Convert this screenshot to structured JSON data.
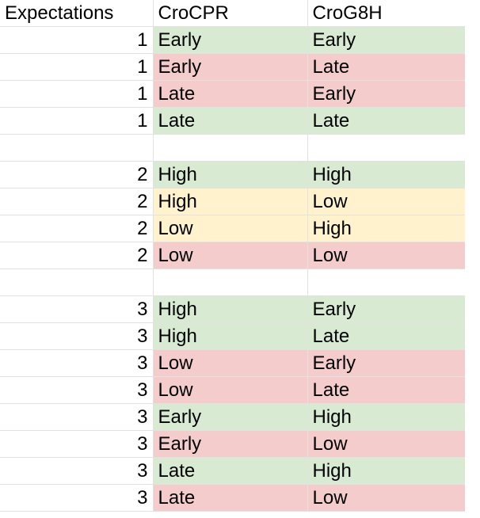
{
  "header": {
    "col_a": "Expectations",
    "col_b": "CroCPR",
    "col_c": "CroG8H"
  },
  "colors": {
    "green": "#d9ead3",
    "red": "#f4cccc",
    "yellow": "#fff2cc",
    "white": "#ffffff"
  },
  "rows": [
    {
      "exp": "1",
      "cpr": "Early",
      "g8h": "Early",
      "color": "green"
    },
    {
      "exp": "1",
      "cpr": "Early",
      "g8h": "Late",
      "color": "red"
    },
    {
      "exp": "1",
      "cpr": "Late",
      "g8h": "Early",
      "color": "red"
    },
    {
      "exp": "1",
      "cpr": "Late",
      "g8h": "Late",
      "color": "green"
    },
    {
      "exp": "",
      "cpr": "",
      "g8h": "",
      "color": "white"
    },
    {
      "exp": "2",
      "cpr": "High",
      "g8h": "High",
      "color": "green"
    },
    {
      "exp": "2",
      "cpr": "High",
      "g8h": "Low",
      "color": "yellow"
    },
    {
      "exp": "2",
      "cpr": "Low",
      "g8h": "High",
      "color": "yellow"
    },
    {
      "exp": "2",
      "cpr": "Low",
      "g8h": "Low",
      "color": "red"
    },
    {
      "exp": "",
      "cpr": "",
      "g8h": "",
      "color": "white"
    },
    {
      "exp": "3",
      "cpr": "High",
      "g8h": "Early",
      "color": "green"
    },
    {
      "exp": "3",
      "cpr": "High",
      "g8h": "Late",
      "color": "green"
    },
    {
      "exp": "3",
      "cpr": "Low",
      "g8h": "Early",
      "color": "red"
    },
    {
      "exp": "3",
      "cpr": "Low",
      "g8h": "Late",
      "color": "red"
    },
    {
      "exp": "3",
      "cpr": "Early",
      "g8h": "High",
      "color": "green"
    },
    {
      "exp": "3",
      "cpr": "Early",
      "g8h": "Low",
      "color": "red"
    },
    {
      "exp": "3",
      "cpr": "Late",
      "g8h": "High",
      "color": "green"
    },
    {
      "exp": "3",
      "cpr": "Late",
      "g8h": "Low",
      "color": "red"
    }
  ]
}
